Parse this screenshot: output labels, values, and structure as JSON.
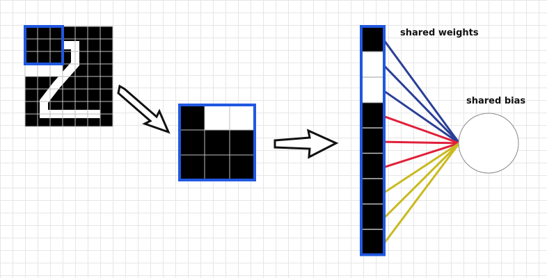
{
  "labels": {
    "weights": "shared weights",
    "bias": "shared bias"
  },
  "colors": {
    "filled": "#000000",
    "empty": "#ffffff",
    "grid_line": "#bfbfbf",
    "highlight": "#2058e0",
    "weights_top": "#2a3f96",
    "weights_middle": "#e0203a",
    "weights_bottom": "#c9ba20",
    "arrow_outline": "#111111",
    "neuron_outline": "#888888"
  },
  "input_image": {
    "rows": [
      [
        1,
        1,
        1,
        1,
        1,
        1,
        1
      ],
      [
        1,
        1,
        1,
        1,
        1,
        1,
        1
      ],
      [
        1,
        1,
        1,
        1,
        1,
        1,
        1
      ],
      [
        0,
        0,
        0,
        1,
        1,
        1,
        1
      ],
      [
        1,
        1,
        1,
        1,
        1,
        1,
        1
      ],
      [
        1,
        1,
        1,
        1,
        1,
        1,
        1
      ],
      [
        1,
        1,
        1,
        1,
        1,
        1,
        1
      ],
      [
        1,
        1,
        1,
        1,
        1,
        1,
        1
      ]
    ]
  },
  "patch": {
    "rows": [
      [
        1,
        0,
        0
      ],
      [
        1,
        1,
        1
      ],
      [
        1,
        1,
        1
      ]
    ]
  },
  "flattened": {
    "values": [
      1,
      0,
      0,
      1,
      1,
      1,
      1,
      1,
      1
    ]
  },
  "weight_groups": [
    "top",
    "top",
    "top",
    "middle",
    "middle",
    "middle",
    "bottom",
    "bottom",
    "bottom"
  ]
}
